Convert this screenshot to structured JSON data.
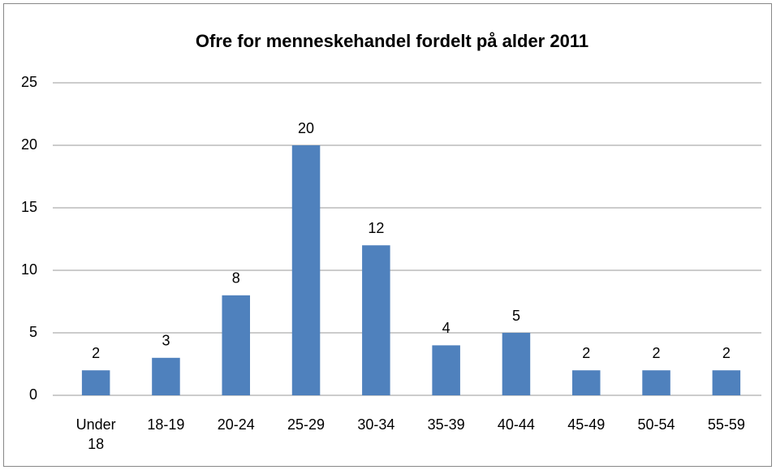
{
  "chart_data": {
    "type": "bar",
    "title": "Ofre for menneskehandel fordelt på alder 2011",
    "categories": [
      "Under 18",
      "18-19",
      "20-24",
      "25-29",
      "30-34",
      "35-39",
      "40-44",
      "45-49",
      "50-54",
      "55-59"
    ],
    "values": [
      2,
      3,
      8,
      20,
      12,
      4,
      5,
      2,
      2,
      2
    ],
    "color": "#4f81bd",
    "ylim": [
      0,
      25
    ],
    "yticks": [
      0,
      5,
      10,
      15,
      20,
      25
    ],
    "grid": true
  }
}
